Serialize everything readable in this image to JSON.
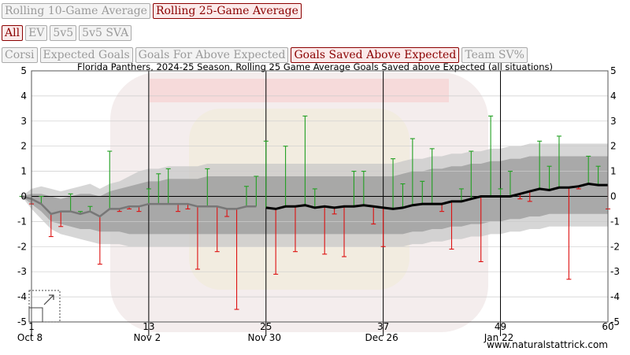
{
  "controls": {
    "window_buttons": [
      {
        "label": "Rolling 10-Game Average",
        "active": false
      },
      {
        "label": "Rolling 25-Game Average",
        "active": true
      }
    ],
    "situation_buttons": [
      {
        "label": "All",
        "active": true
      },
      {
        "label": "EV",
        "active": false
      },
      {
        "label": "5v5",
        "active": false
      },
      {
        "label": "5v5 SVA",
        "active": false
      }
    ],
    "metric_buttons": [
      {
        "label": "Corsi",
        "active": false
      },
      {
        "label": "Expected Goals",
        "active": false
      },
      {
        "label": "Goals For Above Expected",
        "active": false
      },
      {
        "label": "Goals Saved Above Expected",
        "active": true
      },
      {
        "label": "Team SV%",
        "active": false
      }
    ]
  },
  "colors": {
    "active_text": "#8b0000",
    "inactive_text": "#9a9a9a",
    "positive_stem": "#22a022",
    "negative_stem": "#dd1111",
    "band_outer": "#c8c8c8",
    "band_inner": "#999999",
    "line_pre": "#777777",
    "line_main": "#000000"
  },
  "chart_data": {
    "type": "line",
    "title": "Florida Panthers, 2024-25 Season, Rolling 25 Game Average Goals Saved above Expected (all situations)",
    "xlabel": "",
    "ylabel": "",
    "xlim": [
      1,
      60
    ],
    "ylim": [
      -5,
      5
    ],
    "y_ticks": [
      -5,
      -4,
      -3,
      -2,
      -1,
      0,
      1,
      2,
      3,
      4,
      5
    ],
    "x_ticks": [
      1,
      13,
      25,
      37,
      49,
      60
    ],
    "date_labels": [
      {
        "game": 1,
        "label": "Oct 8"
      },
      {
        "game": 13,
        "label": "Nov 2"
      },
      {
        "game": 25,
        "label": "Nov 30"
      },
      {
        "game": 37,
        "label": "Dec 26"
      },
      {
        "game": 49,
        "label": "Jan 22"
      }
    ],
    "grid": true,
    "source": "www.naturalstattrick.com",
    "game_values": [
      0,
      -0.3,
      0,
      -1.6,
      -1.2,
      0.1,
      -0.6,
      -0.4,
      -2.7,
      1.8,
      -0.6,
      -0.5,
      -0.6,
      0.3,
      0.9,
      1.1,
      -0.6,
      -0.5,
      -2.9,
      1.1,
      -2.2,
      -0.8,
      -4.5,
      0.4,
      0.8,
      2.2,
      -3.1,
      2.0,
      -2.2,
      3.2,
      0.3,
      -2.3,
      -0.7,
      -2.4,
      1.0,
      1.0,
      -1.1,
      -2.0,
      1.5,
      0.5,
      2.3,
      0.6,
      1.9,
      -0.6,
      -2.1,
      0.3,
      1.8,
      -2.6,
      3.2,
      0.3,
      1.0,
      -0.1,
      -0.2,
      2.2,
      1.2,
      2.4,
      -3.3,
      0.3,
      1.6,
      1.2,
      -0.5
    ],
    "rolling_average": [
      0,
      -0.1,
      -0.3,
      -0.7,
      -0.6,
      -0.6,
      -0.7,
      -0.6,
      -0.8,
      -0.5,
      -0.5,
      -0.4,
      -0.4,
      -0.3,
      -0.3,
      -0.3,
      -0.3,
      -0.3,
      -0.4,
      -0.4,
      -0.4,
      -0.5,
      -0.5,
      -0.4,
      -0.4,
      -0.45,
      -0.5,
      -0.4,
      -0.4,
      -0.35,
      -0.45,
      -0.4,
      -0.45,
      -0.4,
      -0.4,
      -0.35,
      -0.4,
      -0.45,
      -0.5,
      -0.45,
      -0.35,
      -0.3,
      -0.3,
      -0.3,
      -0.2,
      -0.2,
      -0.1,
      0.0,
      0.0,
      0.0,
      0.0,
      0.1,
      0.2,
      0.3,
      0.25,
      0.35,
      0.35,
      0.4,
      0.5,
      0.45,
      0.45
    ],
    "series": [
      {
        "values": [
          0,
          -0.1,
          -0.3,
          -0.7,
          -0.6,
          -0.6,
          -0.7,
          -0.6,
          -0.8,
          -0.5,
          -0.5,
          -0.4,
          -0.4,
          -0.3,
          -0.3,
          -0.3,
          -0.3,
          -0.3,
          -0.4,
          -0.4,
          -0.4,
          -0.5,
          -0.5,
          -0.4,
          -0.4
        ]
      },
      {
        "values": [
          -0.45,
          -0.5,
          -0.4,
          -0.4,
          -0.35,
          -0.45,
          -0.4,
          -0.45,
          -0.4,
          -0.4,
          -0.35,
          -0.4,
          -0.45,
          -0.5,
          -0.45,
          -0.35,
          -0.3,
          -0.3,
          -0.3,
          -0.2,
          -0.2,
          -0.1,
          0.0,
          0.0,
          0.0,
          0.0,
          0.1,
          0.2,
          0.3,
          0.25,
          0.35,
          0.35,
          0.4,
          0.5,
          0.45,
          0.45
        ]
      }
    ],
    "band_outer_upper": [
      0,
      0.3,
      0.4,
      0.3,
      0.2,
      0.3,
      0.4,
      0.5,
      0.3,
      0.5,
      0.6,
      0.8,
      1.0,
      1.1,
      1.1,
      1.2,
      1.2,
      1.2,
      1.2,
      1.3,
      1.3,
      1.3,
      1.3,
      1.3,
      1.3,
      1.3,
      1.3,
      1.3,
      1.3,
      1.3,
      1.3,
      1.3,
      1.3,
      1.3,
      1.3,
      1.3,
      1.3,
      1.3,
      1.3,
      1.4,
      1.5,
      1.5,
      1.6,
      1.6,
      1.7,
      1.7,
      1.8,
      1.8,
      1.9,
      1.9,
      2.0,
      2.0,
      2.1,
      2.1,
      2.1,
      2.1,
      2.1,
      2.1,
      2.1,
      2.1,
      2.1
    ],
    "band_outer_lower": [
      0,
      -0.5,
      -0.9,
      -1.3,
      -1.5,
      -1.6,
      -1.7,
      -1.8,
      -1.9,
      -1.9,
      -1.9,
      -2.0,
      -2.0,
      -2.0,
      -2.0,
      -2.0,
      -2.0,
      -2.0,
      -2.0,
      -2.0,
      -2.0,
      -2.0,
      -2.0,
      -2.0,
      -2.0,
      -2.0,
      -2.0,
      -2.0,
      -2.0,
      -2.0,
      -2.0,
      -2.0,
      -2.0,
      -2.0,
      -2.0,
      -2.0,
      -2.0,
      -2.0,
      -2.0,
      -2.0,
      -1.9,
      -1.9,
      -1.8,
      -1.8,
      -1.7,
      -1.7,
      -1.6,
      -1.6,
      -1.5,
      -1.5,
      -1.4,
      -1.4,
      -1.3,
      -1.3,
      -1.2,
      -1.2,
      -1.2,
      -1.2,
      -1.2,
      -1.2,
      -1.2
    ],
    "band_inner_upper": [
      0,
      0.1,
      0.1,
      0.0,
      -0.1,
      0.0,
      0.1,
      0.1,
      0.0,
      0.2,
      0.3,
      0.4,
      0.5,
      0.6,
      0.6,
      0.7,
      0.7,
      0.7,
      0.7,
      0.8,
      0.8,
      0.8,
      0.8,
      0.8,
      0.8,
      0.8,
      0.8,
      0.8,
      0.8,
      0.8,
      0.8,
      0.8,
      0.8,
      0.8,
      0.8,
      0.8,
      0.8,
      0.8,
      0.8,
      0.9,
      1.0,
      1.0,
      1.1,
      1.1,
      1.2,
      1.2,
      1.3,
      1.3,
      1.4,
      1.4,
      1.5,
      1.5,
      1.6,
      1.6,
      1.6,
      1.6,
      1.6,
      1.6,
      1.6,
      1.6,
      1.6
    ],
    "band_inner_lower": [
      0,
      -0.3,
      -0.6,
      -1.0,
      -1.1,
      -1.2,
      -1.3,
      -1.3,
      -1.4,
      -1.4,
      -1.4,
      -1.5,
      -1.5,
      -1.5,
      -1.5,
      -1.5,
      -1.5,
      -1.5,
      -1.5,
      -1.5,
      -1.5,
      -1.5,
      -1.5,
      -1.5,
      -1.5,
      -1.5,
      -1.5,
      -1.5,
      -1.5,
      -1.5,
      -1.5,
      -1.5,
      -1.5,
      -1.5,
      -1.5,
      -1.5,
      -1.5,
      -1.5,
      -1.5,
      -1.5,
      -1.4,
      -1.4,
      -1.3,
      -1.3,
      -1.2,
      -1.2,
      -1.1,
      -1.1,
      -1.0,
      -1.0,
      -0.9,
      -0.9,
      -0.8,
      -0.8,
      -0.7,
      -0.7,
      -0.7,
      -0.7,
      -0.7,
      -0.7,
      -0.7
    ]
  }
}
